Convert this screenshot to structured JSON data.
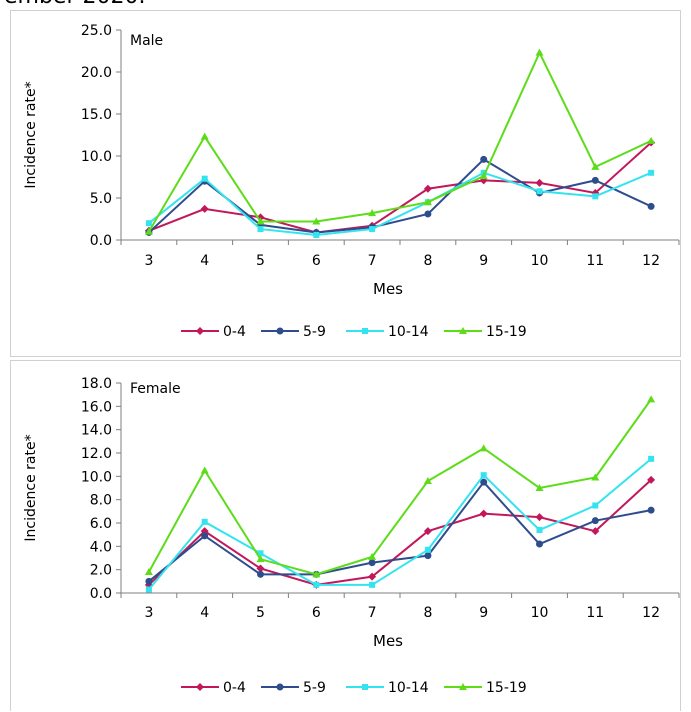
{
  "page": {
    "top_text": "ember 2020."
  },
  "chart_data": [
    {
      "type": "line",
      "title": "Male",
      "xlabel": "Mes",
      "ylabel": "Incidence rate*",
      "x": [
        3,
        4,
        5,
        6,
        7,
        8,
        9,
        10,
        11,
        12
      ],
      "ylim": [
        0,
        25
      ],
      "yticks": [
        "0.0",
        "5.0",
        "10.0",
        "15.0",
        "20.0",
        "25.0"
      ],
      "grid": false,
      "legend": "bottom",
      "series": [
        {
          "name": "0-4",
          "color": "#c2185b",
          "marker": "diamond",
          "values": [
            1.1,
            3.7,
            2.7,
            0.9,
            1.7,
            6.1,
            7.1,
            6.8,
            5.6,
            11.6
          ]
        },
        {
          "name": "5-9",
          "color": "#2e4d8c",
          "marker": "circle",
          "values": [
            0.9,
            7.0,
            1.8,
            0.9,
            1.5,
            3.1,
            9.6,
            5.6,
            7.1,
            4.0
          ]
        },
        {
          "name": "10-14",
          "color": "#33e4f0",
          "marker": "square",
          "values": [
            2.0,
            7.3,
            1.3,
            0.6,
            1.3,
            4.5,
            8.0,
            5.8,
            5.2,
            8.0
          ]
        },
        {
          "name": "15-19",
          "color": "#5ddc1a",
          "marker": "triangle",
          "values": [
            1.0,
            12.3,
            2.2,
            2.2,
            3.2,
            4.5,
            7.6,
            22.3,
            8.7,
            11.8
          ]
        }
      ]
    },
    {
      "type": "line",
      "title": "Female",
      "xlabel": "Mes",
      "ylabel": "Incidence rate*",
      "x": [
        3,
        4,
        5,
        6,
        7,
        8,
        9,
        10,
        11,
        12
      ],
      "ylim": [
        0,
        18
      ],
      "yticks": [
        "0.0",
        "2.0",
        "4.0",
        "6.0",
        "8.0",
        "10.0",
        "12.0",
        "14.0",
        "16.0",
        "18.0"
      ],
      "grid": false,
      "legend": "bottom",
      "series": [
        {
          "name": "0-4",
          "color": "#c2185b",
          "marker": "diamond",
          "values": [
            0.7,
            5.3,
            2.1,
            0.7,
            1.4,
            5.3,
            6.8,
            6.5,
            5.3,
            9.7
          ]
        },
        {
          "name": "5-9",
          "color": "#2e4d8c",
          "marker": "circle",
          "values": [
            1.0,
            4.9,
            1.6,
            1.6,
            2.6,
            3.2,
            9.5,
            4.2,
            6.2,
            7.1
          ]
        },
        {
          "name": "10-14",
          "color": "#33e4f0",
          "marker": "square",
          "values": [
            0.3,
            6.1,
            3.4,
            0.7,
            0.7,
            3.7,
            10.1,
            5.4,
            7.5,
            11.5
          ]
        },
        {
          "name": "15-19",
          "color": "#5ddc1a",
          "marker": "triangle",
          "values": [
            1.8,
            10.5,
            2.9,
            1.6,
            3.1,
            9.6,
            12.4,
            9.0,
            9.9,
            16.6
          ]
        }
      ]
    }
  ]
}
